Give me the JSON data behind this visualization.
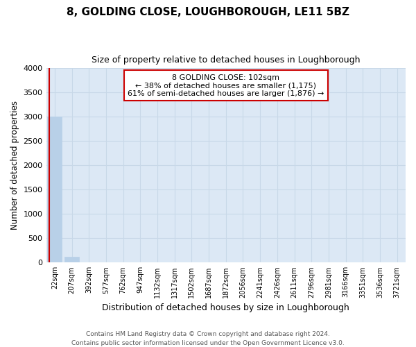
{
  "title": "8, GOLDING CLOSE, LOUGHBOROUGH, LE11 5BZ",
  "subtitle": "Size of property relative to detached houses in Loughborough",
  "xlabel": "Distribution of detached houses by size in Loughborough",
  "ylabel": "Number of detached properties",
  "bar_labels": [
    "22sqm",
    "207sqm",
    "392sqm",
    "577sqm",
    "762sqm",
    "947sqm",
    "1132sqm",
    "1317sqm",
    "1502sqm",
    "1687sqm",
    "1872sqm",
    "2056sqm",
    "2241sqm",
    "2426sqm",
    "2611sqm",
    "2796sqm",
    "2981sqm",
    "3166sqm",
    "3351sqm",
    "3536sqm",
    "3721sqm"
  ],
  "bar_values": [
    3000,
    115,
    3,
    1,
    1,
    1,
    0,
    0,
    0,
    0,
    0,
    0,
    0,
    0,
    0,
    0,
    0,
    0,
    0,
    0,
    0
  ],
  "bar_color": "#b8d0e8",
  "ylim": [
    0,
    4000
  ],
  "yticks": [
    0,
    500,
    1000,
    1500,
    2000,
    2500,
    3000,
    3500,
    4000
  ],
  "annotation_text": "8 GOLDING CLOSE: 102sqm\n← 38% of detached houses are smaller (1,175)\n61% of semi-detached houses are larger (1,876) →",
  "annotation_bbox_color": "#cc0000",
  "footer_line1": "Contains HM Land Registry data © Crown copyright and database right 2024.",
  "footer_line2": "Contains public sector information licensed under the Open Government Licence v3.0.",
  "background_color": "#dce8f5",
  "grid_color": "#c8d8e8",
  "vline_color": "#cc0000"
}
